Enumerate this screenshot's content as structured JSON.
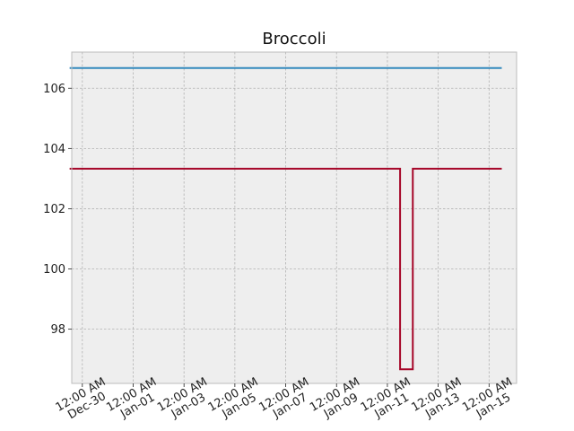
{
  "chart_data": {
    "type": "line",
    "title": "Broccoli",
    "xlabel": "",
    "ylabel": "",
    "grid": true,
    "drawstyle": "steps-post",
    "x_axis": {
      "type": "date",
      "range": [
        "2023-12-29T14:00",
        "2024-01-16T02:00"
      ],
      "ticks": [
        "2023-12-30",
        "2024-01-01",
        "2024-01-03",
        "2024-01-05",
        "2024-01-07",
        "2024-01-09",
        "2024-01-11",
        "2024-01-13",
        "2024-01-15"
      ],
      "tick_labels": [
        [
          "12:00 AM",
          "Dec-30"
        ],
        [
          "12:00 AM",
          "Jan-01"
        ],
        [
          "12:00 AM",
          "Jan-03"
        ],
        [
          "12:00 AM",
          "Jan-05"
        ],
        [
          "12:00 AM",
          "Jan-07"
        ],
        [
          "12:00 AM",
          "Jan-09"
        ],
        [
          "12:00 AM",
          "Jan-11"
        ],
        [
          "12:00 AM",
          "Jan-13"
        ],
        [
          "12:00 AM",
          "Jan-15"
        ]
      ]
    },
    "y_axis": {
      "range": [
        96.2,
        107.2
      ],
      "ticks": [
        98,
        100,
        102,
        104,
        106
      ],
      "tick_labels": [
        "98",
        "100",
        "102",
        "104",
        "106"
      ]
    },
    "series": [
      {
        "color": "#348ABD",
        "points": [
          [
            "2023-12-29T12:00",
            106.67
          ],
          [
            "2024-01-15T12:00",
            106.67
          ]
        ]
      },
      {
        "color": "#A60628",
        "points": [
          [
            "2023-12-29T12:00",
            103.33
          ],
          [
            "2024-01-11T12:00",
            96.67
          ],
          [
            "2024-01-12T00:00",
            103.33
          ],
          [
            "2024-01-15T12:00",
            103.33
          ]
        ]
      }
    ],
    "colors": {
      "plot_background": "#EEEEEE",
      "grid": "#B2B2B2",
      "frame": "#BCBCBC"
    }
  }
}
